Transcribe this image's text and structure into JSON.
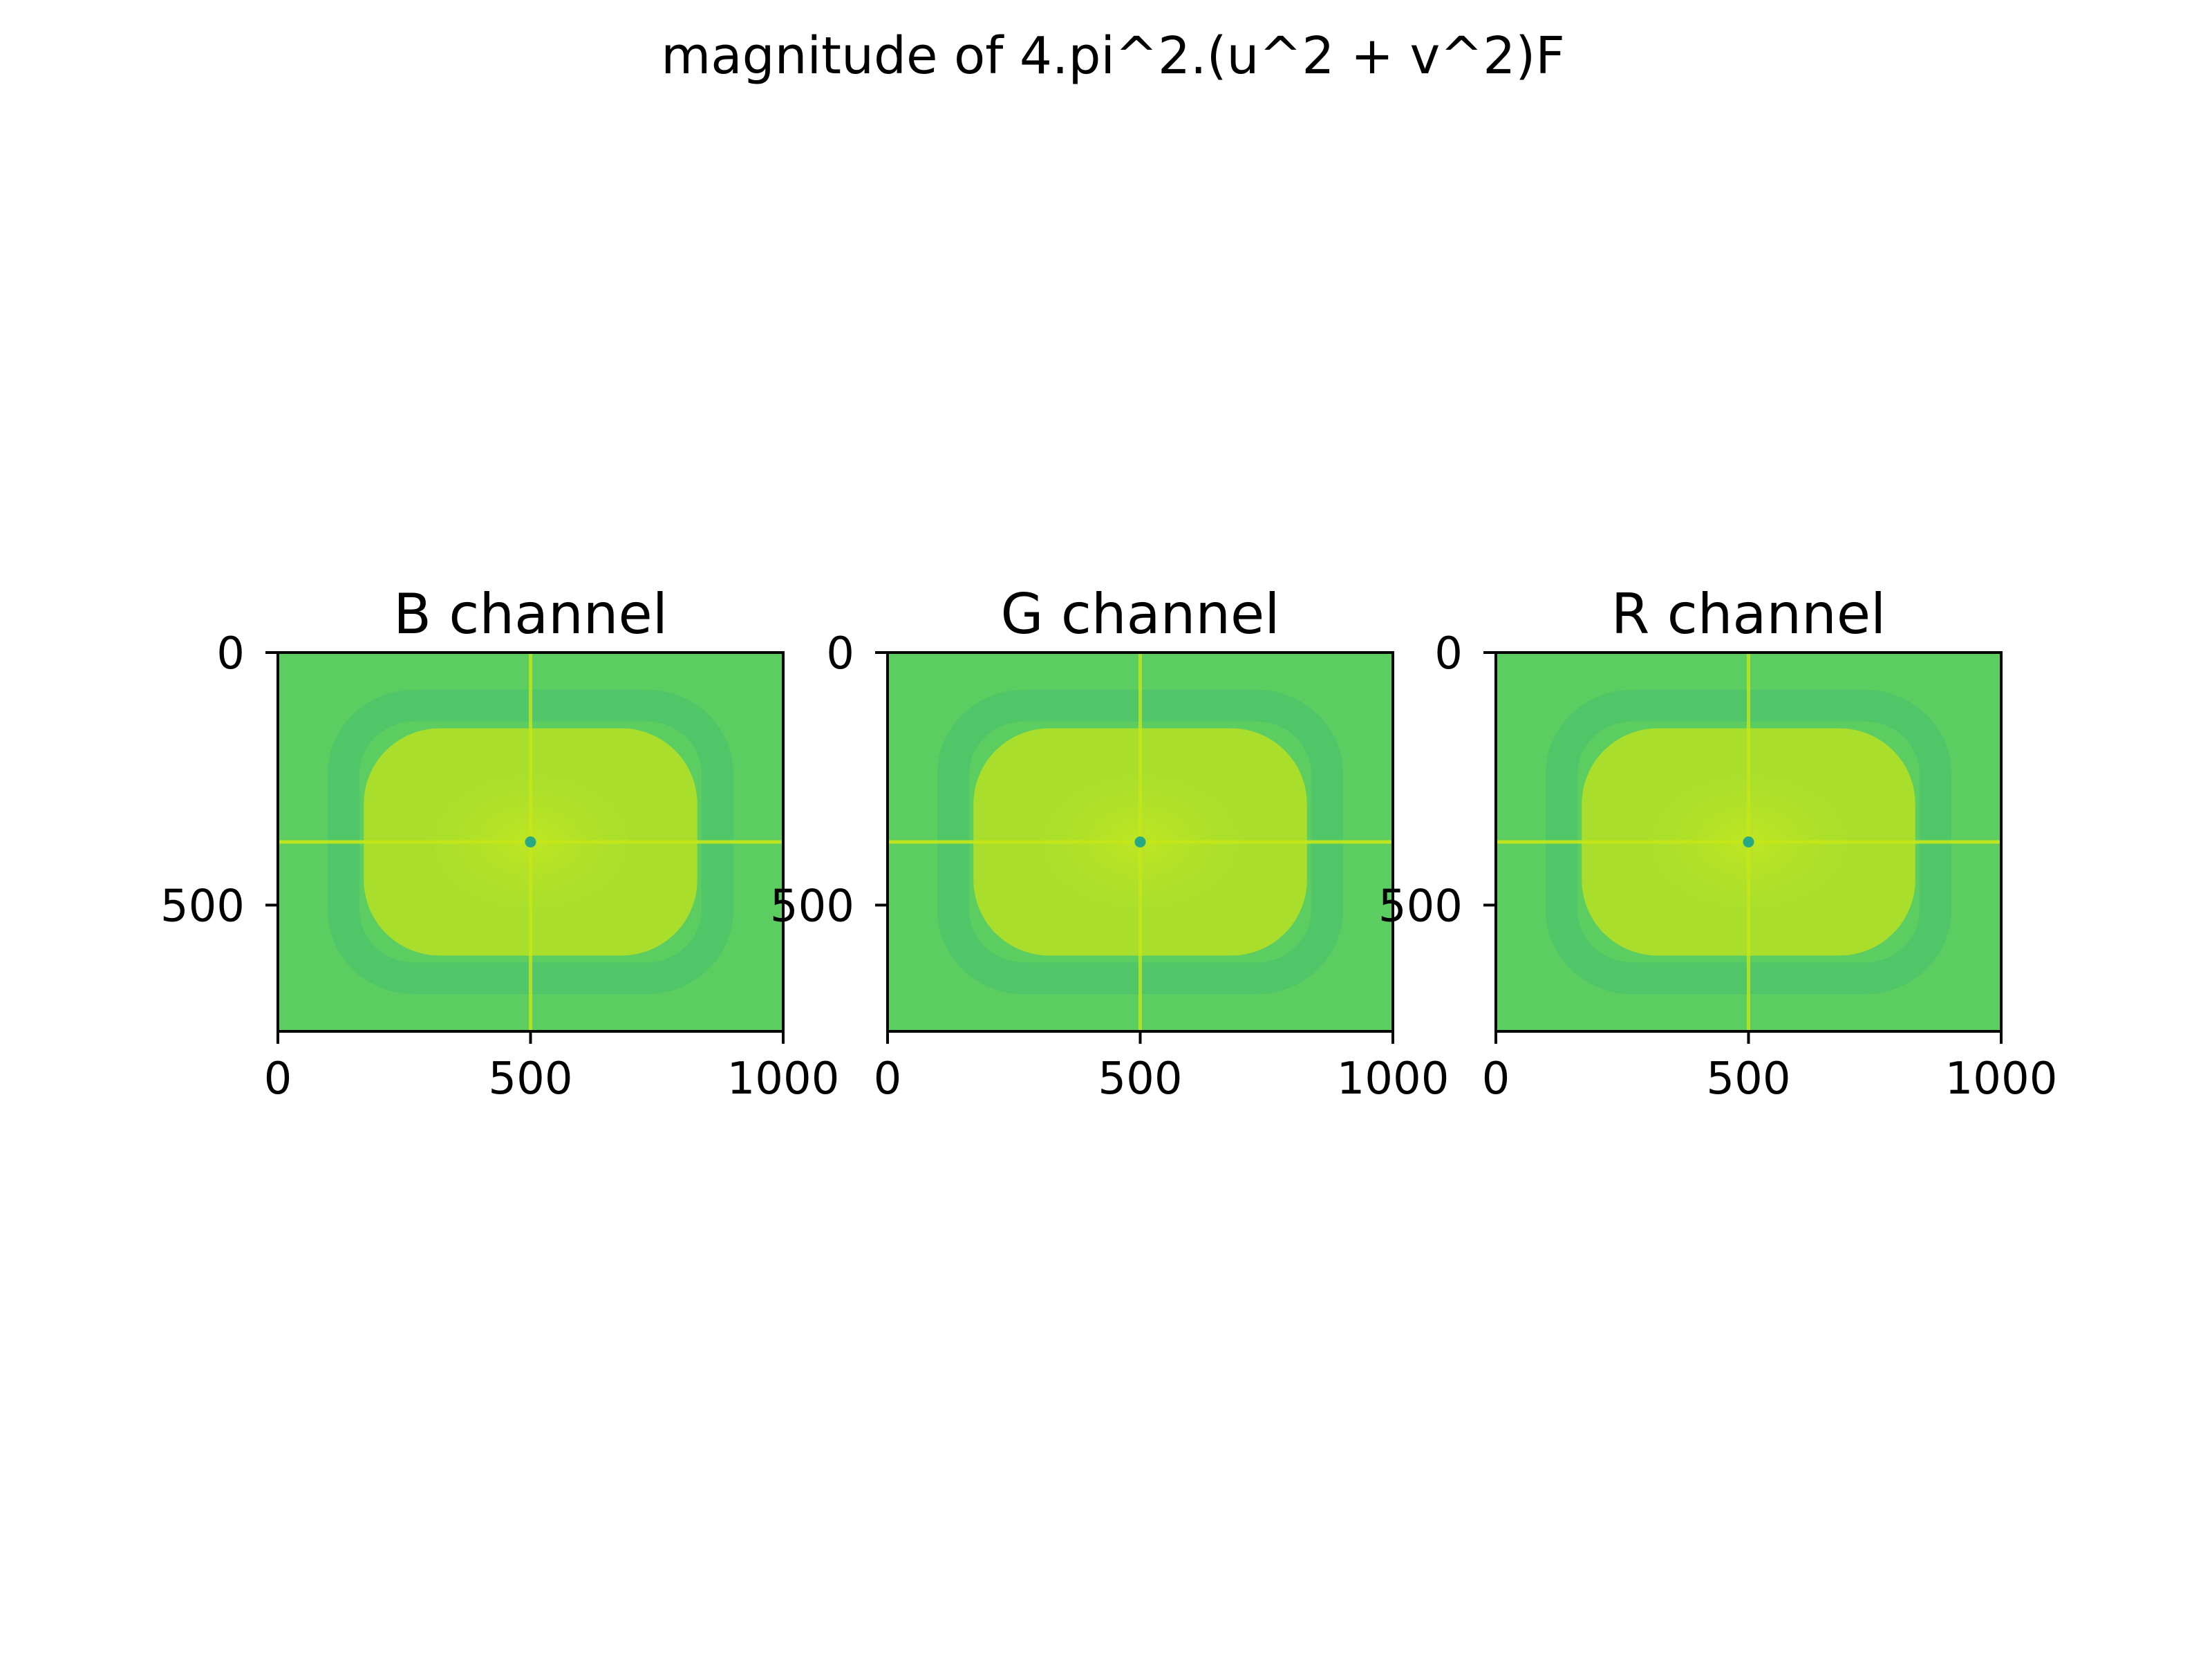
{
  "figure": {
    "suptitle": "magnitude of 4.pi^2.(u^2 + v^2)F"
  },
  "colors": {
    "outer": "#5ccd60",
    "band": "#4fc46a",
    "center": "#a9df2c",
    "core": "#bde522",
    "axis_line": "#c7e718",
    "dot": "#28a884",
    "frame": "#000000"
  },
  "chart_data": [
    {
      "type": "heatmap",
      "title": "B channel",
      "x_ticks": [
        0,
        500,
        1000
      ],
      "y_ticks": [
        0,
        500
      ],
      "xlim": [
        0,
        1000
      ],
      "ylim": [
        750,
        0
      ],
      "colormap": "viridis",
      "center": [
        500,
        375
      ]
    },
    {
      "type": "heatmap",
      "title": "G channel",
      "x_ticks": [
        0,
        500,
        1000
      ],
      "y_ticks": [
        0,
        500
      ],
      "xlim": [
        0,
        1000
      ],
      "ylim": [
        750,
        0
      ],
      "colormap": "viridis",
      "center": [
        500,
        375
      ]
    },
    {
      "type": "heatmap",
      "title": "R channel",
      "x_ticks": [
        0,
        500,
        1000
      ],
      "y_ticks": [
        0,
        500
      ],
      "xlim": [
        0,
        1000
      ],
      "ylim": [
        750,
        0
      ],
      "colormap": "viridis",
      "center": [
        500,
        375
      ]
    }
  ]
}
